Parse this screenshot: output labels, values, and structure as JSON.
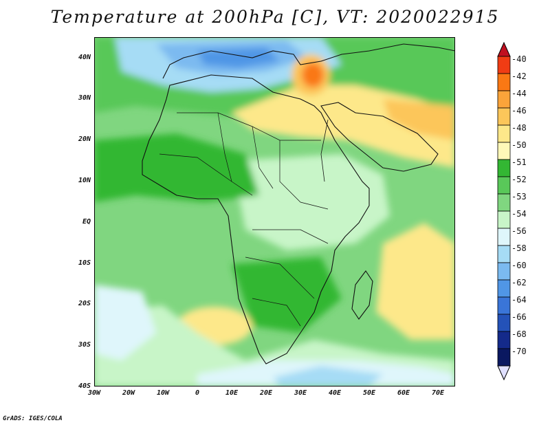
{
  "title": "Temperature at 200hPa [C], VT: 2020022915",
  "credit": "GrADS: IGES/COLA",
  "axes": {
    "lat_labels": [
      "40N",
      "30N",
      "20N",
      "10N",
      "EQ",
      "10S",
      "20S",
      "30S",
      "40S"
    ],
    "lon_labels": [
      "30W",
      "20W",
      "10W",
      "0",
      "10E",
      "20E",
      "30E",
      "40E",
      "50E",
      "60E",
      "70E"
    ]
  },
  "colorbar": {
    "labels": [
      "-40",
      "-42",
      "-44",
      "-46",
      "-48",
      "-50",
      "-51",
      "-52",
      "-53",
      "-54",
      "-56",
      "-58",
      "-60",
      "-62",
      "-64",
      "-66",
      "-68",
      "-70"
    ],
    "colors": [
      "#c01020",
      "#f03c14",
      "#fa7814",
      "#fba43a",
      "#fcc65a",
      "#fde88a",
      "#fef8b8",
      "#33b733",
      "#59c859",
      "#80d680",
      "#c8f5c8",
      "#dff6fb",
      "#a6dcf5",
      "#7bbaf0",
      "#5096e6",
      "#3a75d8",
      "#2452b8",
      "#142a8a",
      "#0a1860",
      "#e0e0ff"
    ]
  },
  "chart_data": {
    "type": "heatmap",
    "title": "Temperature at 200hPa [C], VT: 2020022915",
    "x_range": [
      "30W",
      "70E"
    ],
    "y_range": [
      "40S",
      "40N"
    ],
    "legend_levels": [
      -40,
      -42,
      -44,
      -46,
      -48,
      -50,
      -51,
      -52,
      -53,
      -54,
      -56,
      -58,
      -60,
      -62,
      -64,
      -66,
      -68,
      -70
    ]
  }
}
